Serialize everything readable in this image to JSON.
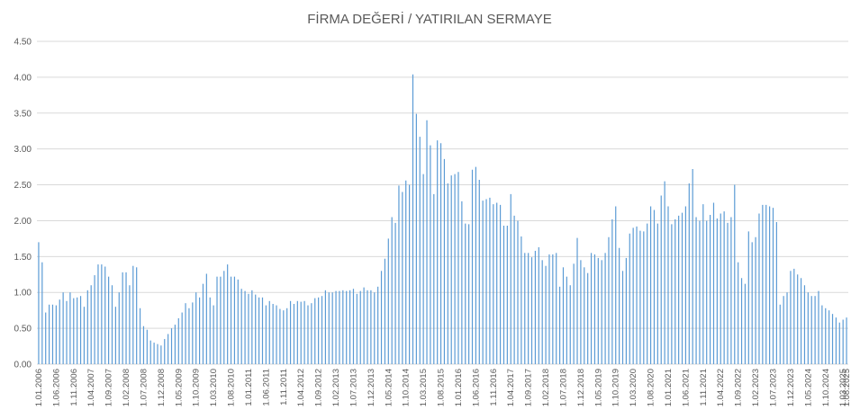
{
  "chart_data": {
    "type": "bar",
    "title": "FİRMA DEĞERİ / YATIRILAN SERMAYE",
    "xlabel": "",
    "ylabel": "",
    "ylim": [
      0,
      4.5
    ],
    "yticks": [
      "0.00",
      "0.50",
      "1.00",
      "1.50",
      "2.00",
      "2.50",
      "3.00",
      "3.50",
      "4.00",
      "4.50"
    ],
    "grid": true,
    "bar_color": "#5b9bd5",
    "x_tick_labels": [
      "1.01.2006",
      "1.06.2006",
      "1.11.2006",
      "1.04.2007",
      "1.09.2007",
      "1.02.2008",
      "1.07.2008",
      "1.12.2008",
      "1.05.2009",
      "1.10.2009",
      "1.03.2010",
      "1.08.2010",
      "1.01.2011",
      "1.06.2011",
      "1.11.2011",
      "1.04.2012",
      "1.09.2012",
      "1.02.2013",
      "1.07.2013",
      "1.12.2013",
      "1.05.2014",
      "1.10.2014",
      "1.03.2015",
      "1.08.2015",
      "1.01.2016",
      "1.06.2016",
      "1.11.2016",
      "1.04.2017",
      "1.09.2017",
      "1.02.2018",
      "1.07.2018",
      "1.12.2018",
      "1.05.2019",
      "1.10.2019",
      "1.03.2020",
      "1.08.2020",
      "1.01.2021",
      "1.06.2021",
      "1.11.2021",
      "1.04.2022",
      "1.09.2022",
      "1.02.2023",
      "1.07.2023",
      "1.12.2023",
      "1.05.2024",
      "1.10.2024",
      "1.03.2025",
      "1.08.2025"
    ],
    "x_start": "2006-01",
    "x_step": "1 month",
    "values": [
      1.7,
      1.42,
      0.72,
      0.83,
      0.83,
      0.82,
      0.9,
      1.0,
      0.88,
      1.0,
      0.92,
      0.93,
      0.95,
      0.8,
      1.03,
      1.1,
      1.24,
      1.39,
      1.39,
      1.36,
      1.22,
      1.1,
      0.8,
      1.0,
      1.28,
      1.28,
      1.1,
      1.37,
      1.35,
      0.78,
      0.53,
      0.48,
      0.33,
      0.3,
      0.28,
      0.26,
      0.35,
      0.42,
      0.5,
      0.55,
      0.64,
      0.72,
      0.85,
      0.78,
      0.86,
      1.0,
      0.93,
      1.12,
      1.26,
      0.93,
      0.82,
      1.22,
      1.22,
      1.3,
      1.39,
      1.22,
      1.22,
      1.18,
      1.05,
      1.02,
      0.98,
      1.03,
      0.97,
      0.93,
      0.93,
      0.82,
      0.88,
      0.84,
      0.82,
      0.77,
      0.75,
      0.78,
      0.88,
      0.84,
      0.88,
      0.87,
      0.88,
      0.82,
      0.85,
      0.92,
      0.93,
      0.95,
      1.03,
      1.0,
      1.0,
      1.02,
      1.02,
      1.03,
      1.02,
      1.03,
      1.05,
      0.98,
      1.02,
      1.07,
      1.03,
      1.03,
      1.0,
      1.08,
      1.3,
      1.47,
      1.75,
      2.05,
      1.97,
      2.49,
      2.4,
      2.56,
      2.5,
      4.04,
      3.49,
      3.17,
      2.65,
      3.4,
      3.05,
      2.37,
      3.12,
      3.08,
      2.86,
      2.52,
      2.63,
      2.65,
      2.68,
      2.27,
      1.96,
      1.95,
      2.71,
      2.75,
      2.57,
      2.28,
      2.3,
      2.32,
      2.23,
      2.25,
      2.22,
      1.93,
      1.93,
      2.37,
      2.07,
      2.0,
      1.78,
      1.55,
      1.55,
      1.49,
      1.58,
      1.63,
      1.45,
      1.37,
      1.53,
      1.53,
      1.55,
      1.08,
      1.35,
      1.22,
      1.1,
      1.4,
      1.76,
      1.45,
      1.35,
      1.27,
      1.55,
      1.53,
      1.48,
      1.45,
      1.55,
      1.77,
      2.02,
      2.2,
      1.62,
      1.3,
      1.48,
      1.82,
      1.9,
      1.92,
      1.86,
      1.85,
      1.96,
      2.2,
      2.15,
      1.96,
      2.35,
      2.55,
      2.2,
      1.95,
      2.02,
      2.07,
      2.11,
      2.2,
      2.52,
      2.72,
      2.05,
      2.0,
      2.23,
      2.0,
      2.08,
      2.25,
      2.03,
      2.1,
      2.13,
      1.97,
      2.05,
      2.5,
      1.42,
      1.2,
      1.12,
      1.85,
      1.7,
      1.77,
      2.1,
      2.22,
      2.22,
      2.2,
      2.18,
      1.98,
      0.83,
      0.95,
      1.0,
      1.3,
      1.33,
      1.25,
      1.2,
      1.1,
      1.0,
      0.95,
      0.95,
      1.02,
      0.82,
      0.78,
      0.75,
      0.7,
      0.65,
      0.58,
      0.62,
      0.65
    ]
  }
}
